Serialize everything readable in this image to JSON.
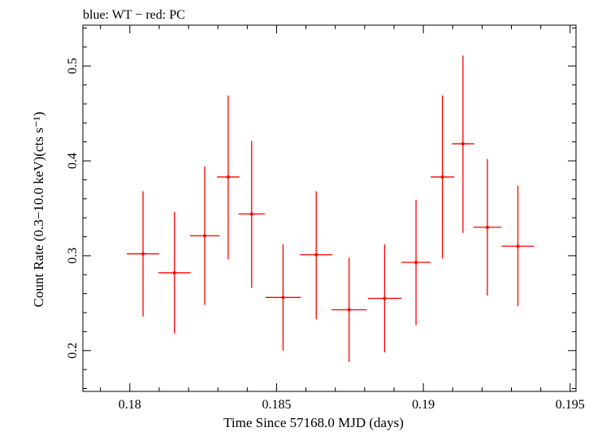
{
  "chart_data": {
    "type": "scatter",
    "title": "blue: WT − red: PC",
    "xlabel": "Time Since 57168.0 MJD (days)",
    "ylabel": "Count Rate (0.3−10.0 keV)(cts s⁻¹)",
    "xlim": [
      0.1784,
      0.1952
    ],
    "ylim": [
      0.157,
      0.543
    ],
    "x_ticks": [
      0.18,
      0.185,
      0.19,
      0.195
    ],
    "x_tick_labels": [
      "0.18",
      "0.185",
      "0.19",
      "0.195"
    ],
    "y_ticks": [
      0.2,
      0.3,
      0.4,
      0.5
    ],
    "y_tick_labels": [
      "0.2",
      "0.3",
      "0.4",
      "0.5"
    ],
    "grid": false,
    "legend": "none",
    "colors": {
      "series": "#ff0000",
      "axes": "#000000",
      "background": "#ffffff"
    },
    "series": [
      {
        "color": "#ff0000",
        "points": [
          {
            "x": 0.18045,
            "xerr": 0.00055,
            "y": 0.302,
            "ylo": 0.236,
            "yhi": 0.368
          },
          {
            "x": 0.18152,
            "xerr": 0.00055,
            "y": 0.282,
            "ylo": 0.218,
            "yhi": 0.346
          },
          {
            "x": 0.18255,
            "xerr": 0.0005,
            "y": 0.321,
            "ylo": 0.248,
            "yhi": 0.394
          },
          {
            "x": 0.18335,
            "xerr": 0.00038,
            "y": 0.383,
            "ylo": 0.296,
            "yhi": 0.469
          },
          {
            "x": 0.18415,
            "xerr": 0.00045,
            "y": 0.344,
            "ylo": 0.266,
            "yhi": 0.421
          },
          {
            "x": 0.18522,
            "xerr": 0.0006,
            "y": 0.256,
            "ylo": 0.2,
            "yhi": 0.312
          },
          {
            "x": 0.18635,
            "xerr": 0.00055,
            "y": 0.301,
            "ylo": 0.233,
            "yhi": 0.368
          },
          {
            "x": 0.18747,
            "xerr": 0.0006,
            "y": 0.243,
            "ylo": 0.188,
            "yhi": 0.298
          },
          {
            "x": 0.18868,
            "xerr": 0.00057,
            "y": 0.255,
            "ylo": 0.198,
            "yhi": 0.312
          },
          {
            "x": 0.18975,
            "xerr": 0.0005,
            "y": 0.293,
            "ylo": 0.227,
            "yhi": 0.359
          },
          {
            "x": 0.19065,
            "xerr": 0.0004,
            "y": 0.383,
            "ylo": 0.297,
            "yhi": 0.469
          },
          {
            "x": 0.19135,
            "xerr": 0.00038,
            "y": 0.418,
            "ylo": 0.324,
            "yhi": 0.511
          },
          {
            "x": 0.19218,
            "xerr": 0.00048,
            "y": 0.33,
            "ylo": 0.258,
            "yhi": 0.402
          },
          {
            "x": 0.19322,
            "xerr": 0.00055,
            "y": 0.31,
            "ylo": 0.247,
            "yhi": 0.374
          }
        ]
      }
    ]
  }
}
